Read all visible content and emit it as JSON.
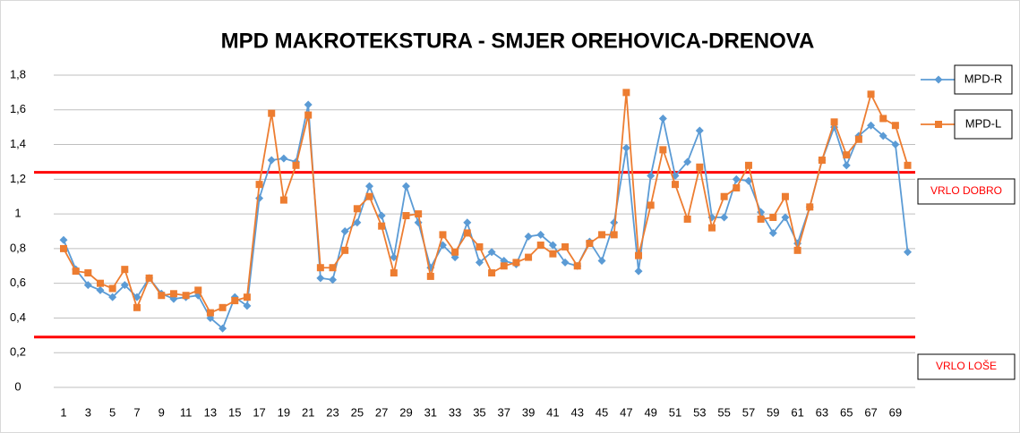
{
  "chart_data": {
    "type": "line",
    "title": "MPD MAKROTEKSTURA - SMJER OREHOVICA-DRENOVA",
    "categories": [
      "1",
      null,
      "3",
      null,
      "5",
      null,
      "7",
      null,
      "9",
      null,
      "11",
      null,
      "13",
      null,
      "15",
      null,
      "17",
      null,
      "19",
      null,
      "21",
      null,
      "23",
      null,
      "25",
      null,
      "27",
      null,
      "29",
      null,
      "31",
      null,
      "33",
      null,
      "35",
      null,
      "37",
      null,
      "39",
      null,
      "41",
      null,
      "43",
      null,
      "45",
      null,
      "47",
      null,
      "49",
      null,
      "51",
      null,
      "53",
      null,
      "55",
      null,
      "57",
      null,
      "59",
      null,
      "61",
      null,
      "63",
      null,
      "65",
      null,
      "67",
      null,
      "69",
      null
    ],
    "series": [
      {
        "name": "MPD-R",
        "color": "#5b9bd5",
        "marker": "diamond",
        "values": [
          0.85,
          0.68,
          0.59,
          0.56,
          0.52,
          0.59,
          0.52,
          0.63,
          0.54,
          0.51,
          0.52,
          0.53,
          0.4,
          0.34,
          0.52,
          0.47,
          1.09,
          1.31,
          1.32,
          1.3,
          1.63,
          0.63,
          0.62,
          0.9,
          0.95,
          1.16,
          0.99,
          0.75,
          1.16,
          0.95,
          0.69,
          0.82,
          0.75,
          0.95,
          0.72,
          0.78,
          0.73,
          0.71,
          0.87,
          0.88,
          0.82,
          0.72,
          0.7,
          0.84,
          0.73,
          0.95,
          1.38,
          0.67,
          1.22,
          1.55,
          1.22,
          1.3,
          1.48,
          0.98,
          0.98,
          1.2,
          1.19,
          1.01,
          0.89,
          0.98,
          0.83,
          1.04,
          1.31,
          1.5,
          1.28,
          1.45,
          1.51,
          1.45,
          1.4,
          0.78
        ]
      },
      {
        "name": "MPD-L",
        "color": "#ed7d31",
        "marker": "square",
        "values": [
          0.8,
          0.67,
          0.66,
          0.6,
          0.57,
          0.68,
          0.46,
          0.63,
          0.53,
          0.54,
          0.53,
          0.56,
          0.43,
          0.46,
          0.5,
          0.52,
          1.17,
          1.58,
          1.08,
          1.28,
          1.57,
          0.69,
          0.69,
          0.79,
          1.03,
          1.1,
          0.93,
          0.66,
          0.99,
          1.0,
          0.64,
          0.88,
          0.78,
          0.89,
          0.81,
          0.66,
          0.7,
          0.72,
          0.75,
          0.82,
          0.77,
          0.81,
          0.7,
          0.83,
          0.88,
          0.88,
          1.7,
          0.76,
          1.05,
          1.37,
          1.17,
          0.97,
          1.27,
          0.92,
          1.1,
          1.15,
          1.28,
          0.97,
          0.98,
          1.1,
          0.79,
          1.04,
          1.31,
          1.53,
          1.34,
          1.43,
          1.69,
          1.55,
          1.51,
          1.28
        ]
      }
    ],
    "ylim": [
      0,
      1.8
    ],
    "yticks": [
      0,
      {
        "value": 0.2,
        "label": "0,2"
      },
      {
        "value": 0.4,
        "label": "0,4"
      },
      {
        "value": 0.6,
        "label": "0,6"
      },
      {
        "value": 0.8,
        "label": "0,8"
      },
      1,
      {
        "value": 1.2,
        "label": "1,2"
      },
      {
        "value": 1.4,
        "label": "1,4"
      },
      {
        "value": 1.6,
        "label": "1,6"
      },
      {
        "value": 1.8,
        "label": "1,8"
      }
    ],
    "grid": true,
    "legend": "right",
    "reference_lines": [
      {
        "value": 1.24,
        "color": "#ff0000",
        "label": "VRLO DOBRO"
      },
      {
        "value": 0.29,
        "color": "#ff0000",
        "label": "VRLO LOŠE"
      }
    ]
  }
}
